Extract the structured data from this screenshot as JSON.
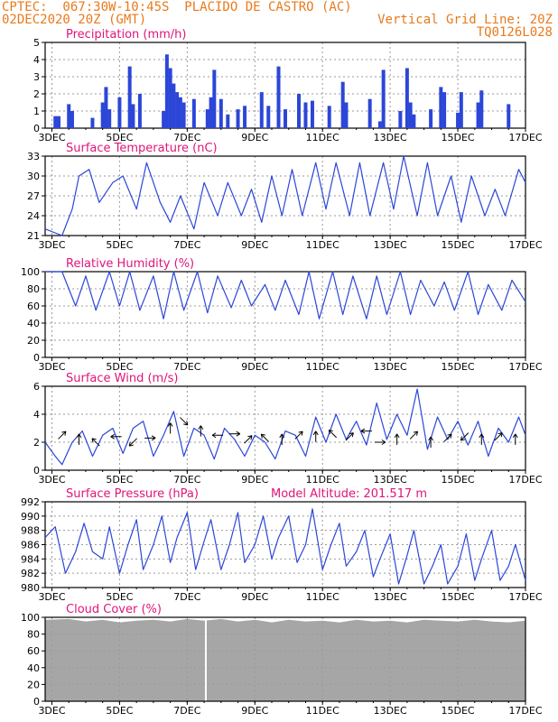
{
  "header": {
    "left_line1": "CPTEC:  067:30W-10:45S  PLACIDO DE CASTRO (AC)",
    "left_line2": "02DEC2020 20Z (GMT)",
    "right_line2": "Vertical Grid Line: 20Z",
    "right_line3": "TQ0126L028"
  },
  "x_axis": {
    "tick_labels": [
      "3DEC",
      "5DEC",
      "7DEC",
      "9DEC",
      "11DEC",
      "13DEC",
      "15DEC",
      "17DEC"
    ],
    "tick_days": [
      3,
      5,
      7,
      9,
      11,
      13,
      15,
      17
    ],
    "range_days": [
      2.8,
      17.0
    ]
  },
  "colors": {
    "line": "#2c46d8",
    "bar": "#2c46d8",
    "cloud": "#a6a6a6",
    "title": "#e0147a",
    "header": "#e87a1c"
  },
  "chart_data": [
    {
      "id": "precip",
      "type": "bar",
      "title": "Precipitation (mm/h)",
      "ylim": [
        0,
        5
      ],
      "yticks": [
        0,
        1,
        2,
        3,
        4,
        5
      ],
      "grid": true,
      "x": [
        3.1,
        3.2,
        3.5,
        3.6,
        4.2,
        4.5,
        4.6,
        4.7,
        5.0,
        5.3,
        5.4,
        5.6,
        6.3,
        6.4,
        6.5,
        6.6,
        6.7,
        6.8,
        6.9,
        7.2,
        7.6,
        7.7,
        7.8,
        8.0,
        8.2,
        8.5,
        8.7,
        9.2,
        9.4,
        9.7,
        9.9,
        10.3,
        10.5,
        10.7,
        11.2,
        11.6,
        11.7,
        12.4,
        12.7,
        12.8,
        13.3,
        13.5,
        13.6,
        13.7,
        14.2,
        14.5,
        14.6,
        15.0,
        15.1,
        15.6,
        15.7,
        16.5
      ],
      "values": [
        0.7,
        0.7,
        1.4,
        1.0,
        0.6,
        1.5,
        2.4,
        1.1,
        1.8,
        3.6,
        1.4,
        2.0,
        1.0,
        4.3,
        3.5,
        2.6,
        2.1,
        1.8,
        1.5,
        1.7,
        1.1,
        1.8,
        3.4,
        1.7,
        0.8,
        1.1,
        1.3,
        2.1,
        1.3,
        3.6,
        1.1,
        2.0,
        1.5,
        1.6,
        1.3,
        2.7,
        1.5,
        1.7,
        0.4,
        3.4,
        1.0,
        3.5,
        1.5,
        0.8,
        1.1,
        2.4,
        2.1,
        0.9,
        2.1,
        1.5,
        2.2,
        1.4
      ]
    },
    {
      "id": "temp",
      "type": "line",
      "title": "Surface Temperature (nC)",
      "ylim": [
        21,
        33
      ],
      "yticks": [
        21,
        24,
        27,
        30,
        33
      ],
      "grid": true,
      "x": [
        2.8,
        3.3,
        3.6,
        3.8,
        4.1,
        4.4,
        4.8,
        5.1,
        5.5,
        5.8,
        6.2,
        6.5,
        6.8,
        7.2,
        7.5,
        7.9,
        8.2,
        8.6,
        8.9,
        9.2,
        9.5,
        9.8,
        10.1,
        10.4,
        10.8,
        11.1,
        11.4,
        11.8,
        12.1,
        12.4,
        12.8,
        13.1,
        13.4,
        13.8,
        14.1,
        14.4,
        14.8,
        15.1,
        15.4,
        15.8,
        16.1,
        16.4,
        16.8,
        17.0
      ],
      "values": [
        22,
        21,
        25,
        30,
        31,
        26,
        29,
        30,
        25,
        32,
        26,
        23,
        27,
        22,
        29,
        24,
        29,
        24,
        28,
        23,
        30,
        24,
        31,
        24,
        32,
        25,
        32,
        24,
        32,
        24,
        32,
        25,
        33,
        24,
        32,
        24,
        30,
        23,
        30,
        24,
        28,
        24,
        31,
        29
      ]
    },
    {
      "id": "rh",
      "type": "line",
      "title": "Relative Humidity (%)",
      "ylim": [
        0,
        100
      ],
      "yticks": [
        0,
        20,
        40,
        60,
        80,
        100
      ],
      "grid": true,
      "x": [
        2.8,
        3.3,
        3.7,
        4.0,
        4.3,
        4.7,
        5.0,
        5.3,
        5.6,
        6.0,
        6.3,
        6.6,
        6.9,
        7.3,
        7.6,
        7.9,
        8.3,
        8.6,
        8.9,
        9.3,
        9.6,
        9.9,
        10.3,
        10.6,
        10.9,
        11.3,
        11.6,
        11.9,
        12.3,
        12.6,
        12.9,
        13.3,
        13.6,
        13.9,
        14.3,
        14.6,
        14.9,
        15.3,
        15.6,
        15.9,
        16.3,
        16.6,
        17.0
      ],
      "values": [
        100,
        100,
        60,
        95,
        55,
        100,
        60,
        100,
        55,
        95,
        45,
        100,
        55,
        100,
        52,
        95,
        58,
        90,
        60,
        85,
        55,
        90,
        50,
        100,
        45,
        100,
        50,
        95,
        45,
        95,
        50,
        100,
        50,
        90,
        60,
        88,
        55,
        100,
        50,
        85,
        55,
        90,
        65
      ]
    },
    {
      "id": "wind",
      "type": "line",
      "title": "Surface Wind (m/s)",
      "ylim": [
        0,
        6
      ],
      "yticks": [
        0,
        2,
        4,
        6
      ],
      "grid": true,
      "x": [
        2.8,
        3.1,
        3.3,
        3.6,
        3.9,
        4.2,
        4.5,
        4.8,
        5.1,
        5.4,
        5.7,
        6.0,
        6.3,
        6.6,
        6.9,
        7.2,
        7.5,
        7.8,
        8.1,
        8.4,
        8.7,
        9.0,
        9.3,
        9.6,
        9.9,
        10.2,
        10.5,
        10.8,
        11.1,
        11.4,
        11.7,
        12.0,
        12.3,
        12.6,
        12.9,
        13.2,
        13.5,
        13.8,
        14.1,
        14.4,
        14.7,
        15.0,
        15.3,
        15.6,
        15.9,
        16.2,
        16.5,
        16.8,
        17.0
      ],
      "values": [
        2.0,
        1.0,
        0.4,
        2.0,
        2.8,
        1.0,
        2.5,
        3.0,
        1.2,
        3.0,
        3.5,
        1.0,
        2.5,
        4.2,
        1.0,
        3.0,
        2.5,
        0.8,
        3.0,
        2.2,
        1.0,
        2.5,
        2.0,
        0.8,
        2.8,
        2.5,
        1.0,
        3.8,
        2.0,
        4.0,
        2.2,
        3.5,
        1.8,
        4.8,
        2.2,
        4.0,
        2.5,
        5.8,
        1.5,
        3.8,
        2.2,
        3.5,
        1.8,
        3.5,
        1.0,
        3.0,
        2.0,
        3.8,
        2.5
      ],
      "arrows": [
        {
          "x": 3.3,
          "speed": 2.5,
          "dir": "NE"
        },
        {
          "x": 3.8,
          "speed": 2.2,
          "dir": "N"
        },
        {
          "x": 4.3,
          "speed": 2.0,
          "dir": "NW"
        },
        {
          "x": 4.9,
          "speed": 2.4,
          "dir": "W"
        },
        {
          "x": 5.4,
          "speed": 2.0,
          "dir": "SW"
        },
        {
          "x": 5.9,
          "speed": 2.3,
          "dir": "E"
        },
        {
          "x": 6.5,
          "speed": 3.0,
          "dir": "N"
        },
        {
          "x": 6.9,
          "speed": 3.5,
          "dir": "SE"
        },
        {
          "x": 7.4,
          "speed": 2.8,
          "dir": "N"
        },
        {
          "x": 7.9,
          "speed": 2.5,
          "dir": "W"
        },
        {
          "x": 8.4,
          "speed": 2.6,
          "dir": "E"
        },
        {
          "x": 8.8,
          "speed": 2.2,
          "dir": "NE"
        },
        {
          "x": 9.3,
          "speed": 2.3,
          "dir": "NW"
        },
        {
          "x": 9.8,
          "speed": 2.2,
          "dir": "N"
        },
        {
          "x": 10.3,
          "speed": 2.5,
          "dir": "NE"
        },
        {
          "x": 10.8,
          "speed": 2.4,
          "dir": "N"
        },
        {
          "x": 11.3,
          "speed": 2.6,
          "dir": "NW"
        },
        {
          "x": 11.8,
          "speed": 2.4,
          "dir": "NE"
        },
        {
          "x": 12.3,
          "speed": 2.8,
          "dir": "W"
        },
        {
          "x": 12.7,
          "speed": 2.0,
          "dir": "E"
        },
        {
          "x": 13.2,
          "speed": 2.2,
          "dir": "N"
        },
        {
          "x": 13.7,
          "speed": 2.5,
          "dir": "NE"
        },
        {
          "x": 14.2,
          "speed": 2.0,
          "dir": "N"
        },
        {
          "x": 14.7,
          "speed": 2.3,
          "dir": "NE"
        },
        {
          "x": 15.2,
          "speed": 2.4,
          "dir": "SW"
        },
        {
          "x": 15.7,
          "speed": 2.2,
          "dir": "N"
        },
        {
          "x": 16.2,
          "speed": 2.4,
          "dir": "NE"
        },
        {
          "x": 16.7,
          "speed": 2.2,
          "dir": "N"
        }
      ]
    },
    {
      "id": "pressure",
      "type": "line",
      "title": "Surface Pressure (hPa)",
      "annotation": "Model Altitude: 201.517 m",
      "ylim": [
        980,
        992
      ],
      "yticks": [
        980,
        982,
        984,
        986,
        988,
        990,
        992
      ],
      "grid": true,
      "x": [
        2.8,
        3.1,
        3.4,
        3.7,
        3.95,
        4.2,
        4.5,
        4.7,
        5.0,
        5.25,
        5.5,
        5.7,
        6.0,
        6.25,
        6.5,
        6.7,
        7.0,
        7.25,
        7.5,
        7.7,
        8.0,
        8.25,
        8.5,
        8.7,
        9.0,
        9.25,
        9.5,
        9.7,
        10.0,
        10.25,
        10.5,
        10.7,
        11.0,
        11.25,
        11.5,
        11.7,
        12.0,
        12.25,
        12.5,
        12.7,
        13.0,
        13.25,
        13.5,
        13.7,
        14.0,
        14.25,
        14.5,
        14.7,
        15.0,
        15.25,
        15.5,
        15.7,
        16.0,
        16.25,
        16.5,
        16.7,
        17.0
      ],
      "values": [
        987,
        988.5,
        982,
        985,
        989,
        985,
        984,
        988.5,
        982,
        986,
        989.5,
        982.5,
        986,
        990,
        983.5,
        987,
        990.5,
        982.5,
        986.5,
        989.5,
        982.5,
        986,
        990.5,
        983.5,
        986,
        990,
        984,
        987,
        990,
        983.5,
        986,
        991,
        982.5,
        986,
        989,
        983,
        985,
        988,
        981.5,
        984,
        987.5,
        980.5,
        984.5,
        988,
        980.5,
        983,
        986,
        980.5,
        983,
        987.5,
        981,
        984,
        988,
        981,
        983,
        986,
        981
      ]
    },
    {
      "id": "cloud",
      "type": "area",
      "title": "Cloud Cover (%)",
      "ylim": [
        0,
        100
      ],
      "yticks": [
        0,
        20,
        40,
        60,
        80,
        100
      ],
      "grid": true,
      "x": [
        2.8,
        3.5,
        4.0,
        4.5,
        5.0,
        5.5,
        6.0,
        6.5,
        7.0,
        7.5,
        8.0,
        8.5,
        9.0,
        9.5,
        10.0,
        10.5,
        11.0,
        11.5,
        12.0,
        12.5,
        13.0,
        13.5,
        14.0,
        14.5,
        15.0,
        15.5,
        16.0,
        16.5,
        17.0
      ],
      "values": [
        97,
        98,
        95,
        97,
        94,
        96,
        97,
        95,
        98,
        96,
        98,
        95,
        97,
        94,
        97,
        95,
        96,
        94,
        97,
        95,
        96,
        94,
        97,
        96,
        95,
        97,
        95,
        94,
        96
      ]
    }
  ]
}
